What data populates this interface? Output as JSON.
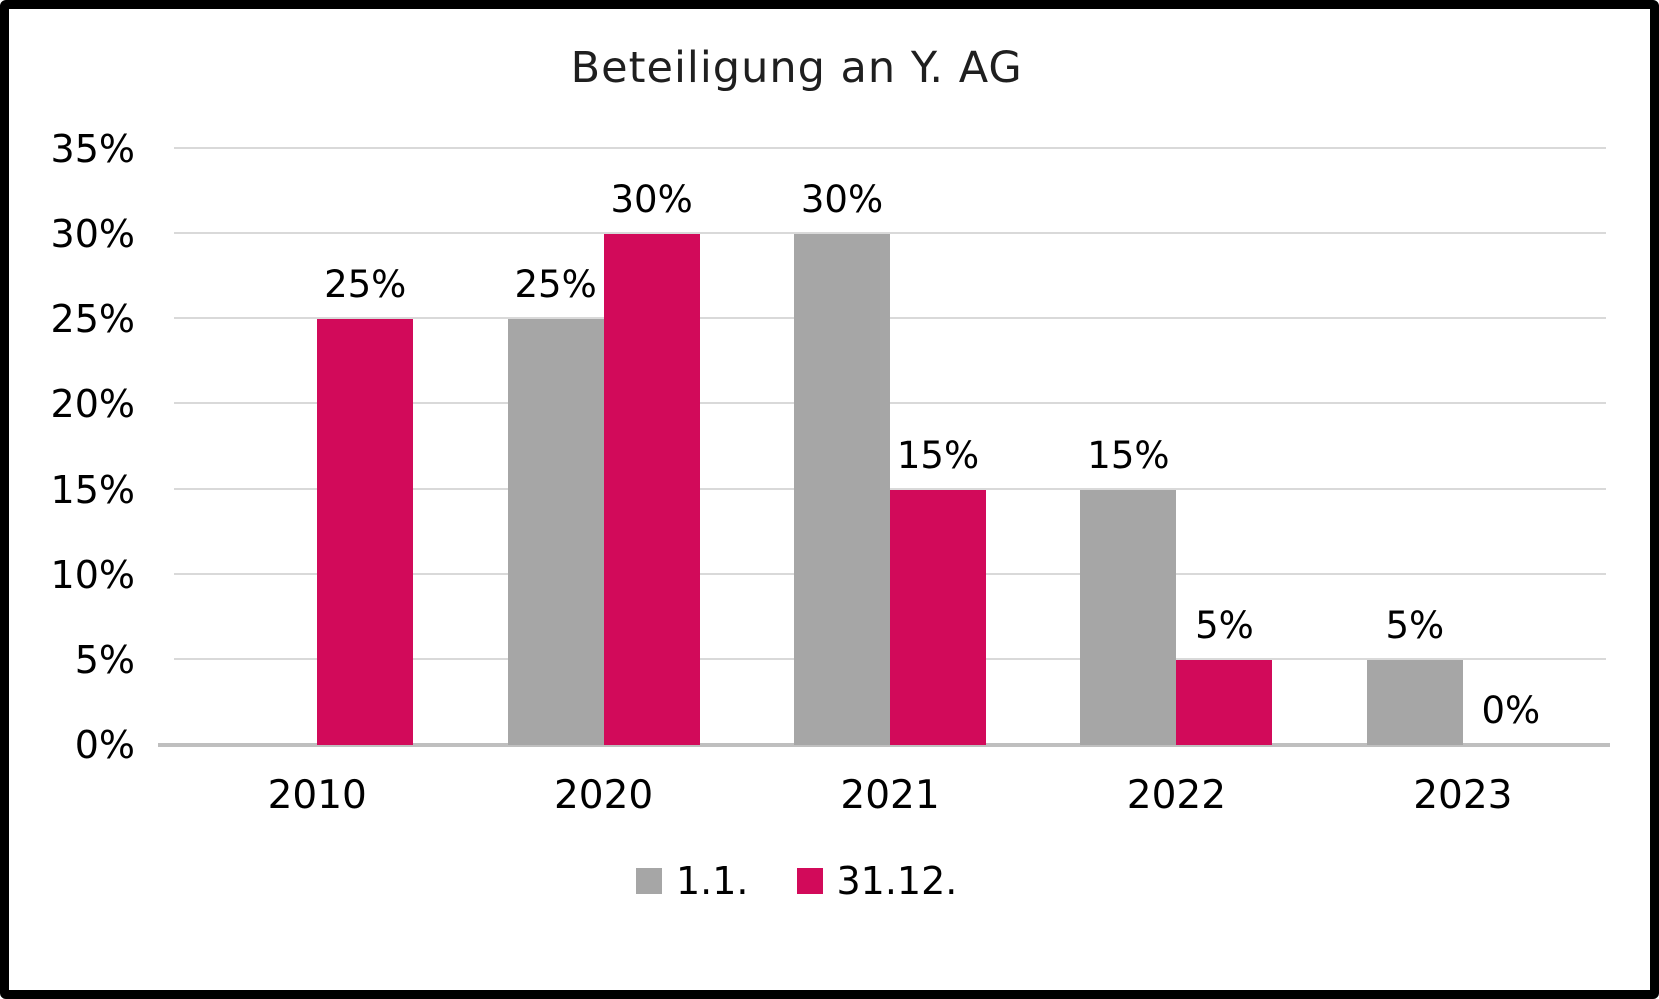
{
  "chart_data": {
    "type": "bar",
    "title": "Beteiligung an Y. AG",
    "categories": [
      "2010",
      "2020",
      "2021",
      "2022",
      "2023"
    ],
    "series": [
      {
        "name": "1.1.",
        "color": "#a6a6a6",
        "values": [
          null,
          25,
          30,
          15,
          5
        ],
        "labels": [
          "",
          "25%",
          "30%",
          "15%",
          "5%"
        ]
      },
      {
        "name": "31.12.",
        "color": "#d20a5a",
        "values": [
          25,
          30,
          15,
          5,
          0
        ],
        "labels": [
          "25%",
          "30%",
          "15%",
          "5%",
          "0%"
        ]
      }
    ],
    "xlabel": "",
    "ylabel": "",
    "ylim": [
      0,
      35
    ],
    "ytick_values": [
      0,
      5,
      10,
      15,
      20,
      25,
      30,
      35
    ],
    "yticks": [
      "0%",
      "5%",
      "10%",
      "15%",
      "20%",
      "25%",
      "30%",
      "35%"
    ],
    "grid": true,
    "legend_position": "bottom",
    "colors": {
      "gridline": "#d9d9d9",
      "axis_line": "#bfbfbf",
      "text": "#000000"
    }
  }
}
